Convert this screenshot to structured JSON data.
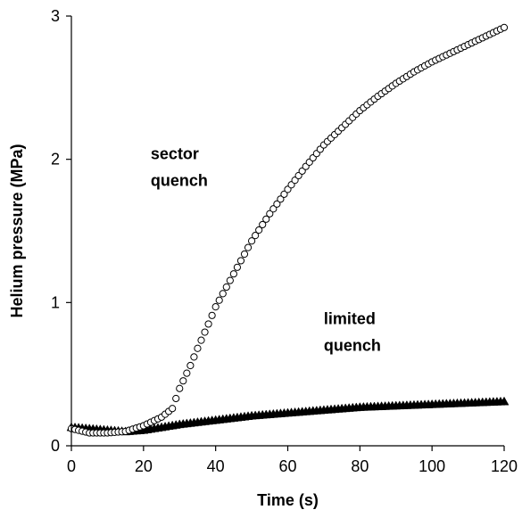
{
  "chart_data": {
    "type": "scatter",
    "xlabel": "Time (s)",
    "ylabel": "Helium pressure (MPa)",
    "xlim": [
      0,
      120
    ],
    "ylim": [
      0,
      3
    ],
    "x_ticks": [
      "0",
      "20",
      "40",
      "60",
      "80",
      "100",
      "120"
    ],
    "y_ticks": [
      "0",
      "1",
      "2",
      "3"
    ],
    "grid": false,
    "legend": "none",
    "annotations": [
      {
        "lines": [
          "sector",
          "quench"
        ],
        "x": 22,
        "y": 2.0
      },
      {
        "lines": [
          "limited",
          "quench"
        ],
        "x": 70,
        "y": 0.85
      }
    ],
    "series": [
      {
        "marker": "open-circle",
        "points": [
          [
            0,
            0.12
          ],
          [
            5,
            0.09
          ],
          [
            10,
            0.09
          ],
          [
            15,
            0.1
          ],
          [
            20,
            0.14
          ],
          [
            25,
            0.2
          ],
          [
            28,
            0.26
          ],
          [
            30,
            0.4
          ],
          [
            33,
            0.56
          ],
          [
            35,
            0.68
          ],
          [
            38,
            0.85
          ],
          [
            40,
            0.97
          ],
          [
            45,
            1.2
          ],
          [
            50,
            1.43
          ],
          [
            55,
            1.62
          ],
          [
            60,
            1.79
          ],
          [
            65,
            1.95
          ],
          [
            70,
            2.1
          ],
          [
            75,
            2.22
          ],
          [
            80,
            2.34
          ],
          [
            85,
            2.44
          ],
          [
            90,
            2.53
          ],
          [
            95,
            2.61
          ],
          [
            100,
            2.68
          ],
          [
            105,
            2.74
          ],
          [
            110,
            2.8
          ],
          [
            115,
            2.86
          ],
          [
            120,
            2.92
          ]
        ]
      },
      {
        "marker": "filled-triangle",
        "points": [
          [
            0,
            0.13
          ],
          [
            5,
            0.12
          ],
          [
            10,
            0.11
          ],
          [
            15,
            0.1
          ],
          [
            20,
            0.11
          ],
          [
            25,
            0.13
          ],
          [
            30,
            0.15
          ],
          [
            40,
            0.18
          ],
          [
            50,
            0.21
          ],
          [
            60,
            0.23
          ],
          [
            70,
            0.25
          ],
          [
            80,
            0.27
          ],
          [
            90,
            0.28
          ],
          [
            100,
            0.29
          ],
          [
            110,
            0.3
          ],
          [
            120,
            0.31
          ]
        ]
      }
    ],
    "colors": {
      "axis": "#000000",
      "marker_stroke": "#000000",
      "open_marker_fill": "#ffffff",
      "filled_marker_fill": "#000000"
    }
  }
}
